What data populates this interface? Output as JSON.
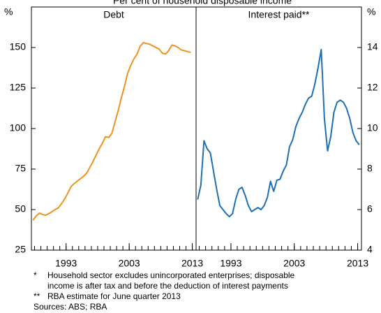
{
  "title": "Per cent of household disposable income",
  "notes": [
    "*",
    "Household sector excludes unincorporated enterprises; disposable",
    "income is after tax and before the deduction of interest payments",
    "**",
    "RBA estimate for June quarter 2013",
    "Sources: ABS; RBA"
  ],
  "chart_data": [
    {
      "type": "line",
      "subtitle": "Debt",
      "y_unit": "%",
      "y_axis_side": "left",
      "color": "#f0921e",
      "xlim": [
        1987.5,
        2013.6
      ],
      "xticks": [
        1993,
        2003,
        2013
      ],
      "xticks_minor": [
        1988,
        1989,
        1990,
        1991,
        1992,
        1993,
        1994,
        1995,
        1996,
        1997,
        1998,
        1999,
        2000,
        2001,
        2002,
        2003,
        2004,
        2005,
        2006,
        2007,
        2008,
        2009,
        2010,
        2011,
        2012,
        2013
      ],
      "ylim": [
        25,
        175
      ],
      "yticks": [
        25,
        50,
        75,
        100,
        125,
        150
      ],
      "x": [
        1987.75,
        1988.25,
        1988.75,
        1989.25,
        1989.75,
        1990.25,
        1990.75,
        1991.25,
        1991.75,
        1992.25,
        1992.75,
        1993.25,
        1993.75,
        1994.25,
        1994.75,
        1995.25,
        1995.75,
        1996.25,
        1996.75,
        1997.25,
        1997.75,
        1998.25,
        1998.75,
        1999.25,
        1999.75,
        2000.25,
        2000.75,
        2001.25,
        2001.75,
        2002.25,
        2002.75,
        2003.25,
        2003.75,
        2004.25,
        2004.75,
        2005.25,
        2005.75,
        2006.25,
        2006.75,
        2007.25,
        2007.75,
        2008.25,
        2008.75,
        2009.25,
        2009.75,
        2010.25,
        2010.75,
        2011.25,
        2011.75,
        2012.25,
        2012.75
      ],
      "values": [
        43.5,
        46,
        47.8,
        47,
        46.5,
        47.5,
        48.7,
        50,
        51,
        53.5,
        56.5,
        60,
        64,
        66,
        67.5,
        69,
        70.5,
        72.5,
        76,
        79.5,
        83.6,
        87.5,
        91,
        95,
        94.5,
        97,
        104,
        111,
        119,
        126,
        134,
        139,
        143,
        146,
        151,
        153,
        152.5,
        152,
        151,
        150,
        149,
        146.5,
        146,
        148,
        151.5,
        151,
        150,
        148.5,
        148,
        147.5,
        147
      ]
    },
    {
      "type": "line",
      "subtitle": "Interest paid**",
      "y_unit": "%",
      "y_axis_side": "right",
      "color": "#1f6fb4",
      "xlim": [
        1987.5,
        2013.6
      ],
      "xticks": [
        1993,
        2003,
        2013
      ],
      "xticks_minor": [
        1988,
        1989,
        1990,
        1991,
        1992,
        1993,
        1994,
        1995,
        1996,
        1997,
        1998,
        1999,
        2000,
        2001,
        2002,
        2003,
        2004,
        2005,
        2006,
        2007,
        2008,
        2009,
        2010,
        2011,
        2012,
        2013
      ],
      "ylim": [
        4,
        16
      ],
      "yticks": [
        4,
        6,
        8,
        10,
        12,
        14
      ],
      "x": [
        1987.75,
        1988.25,
        1988.75,
        1989.25,
        1989.75,
        1990.25,
        1990.75,
        1991.25,
        1991.75,
        1992.25,
        1992.75,
        1993.25,
        1993.75,
        1994.25,
        1994.75,
        1995.25,
        1995.75,
        1996.25,
        1996.75,
        1997.25,
        1997.75,
        1998.25,
        1998.75,
        1999.25,
        1999.75,
        2000.25,
        2000.75,
        2001.25,
        2001.75,
        2002.25,
        2002.75,
        2003.25,
        2003.75,
        2004.25,
        2004.75,
        2005.25,
        2005.75,
        2006.25,
        2006.75,
        2007.25,
        2007.75,
        2008.25,
        2008.75,
        2009.25,
        2009.75,
        2010.25,
        2010.75,
        2011.25,
        2011.75,
        2012.25,
        2012.75,
        2013.25
      ],
      "values": [
        6.5,
        7.2,
        9.4,
        9.0,
        8.8,
        7.9,
        7.0,
        6.2,
        6.0,
        5.8,
        5.65,
        5.8,
        6.5,
        7.0,
        7.1,
        6.7,
        6.2,
        5.9,
        6.0,
        6.1,
        6.0,
        6.2,
        6.6,
        7.4,
        6.9,
        7.45,
        7.5,
        7.9,
        8.2,
        9.1,
        9.45,
        10.1,
        10.5,
        10.8,
        11.2,
        11.5,
        11.6,
        12.2,
        13.0,
        13.9,
        10.5,
        8.9,
        9.6,
        10.8,
        11.3,
        11.4,
        11.3,
        11.0,
        10.5,
        9.8,
        9.4,
        9.2
      ]
    }
  ]
}
